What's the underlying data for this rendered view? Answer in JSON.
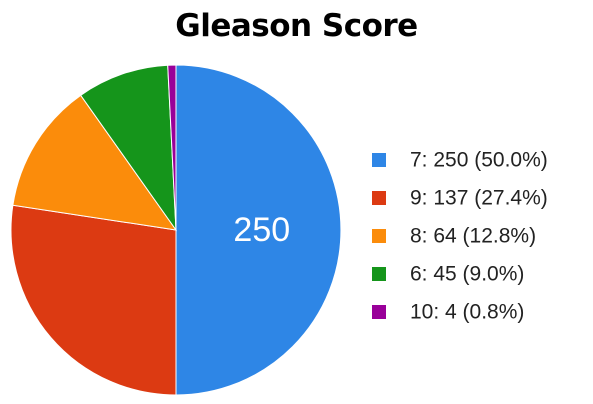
{
  "chart_data": {
    "type": "pie",
    "title": "Gleason Score",
    "slices": [
      {
        "label": "7",
        "value": 250,
        "percent": "50.0%",
        "color": "#2e86e6"
      },
      {
        "label": "9",
        "value": 137,
        "percent": "27.4%",
        "color": "#dc3a12"
      },
      {
        "label": "8",
        "value": 64,
        "percent": "12.8%",
        "color": "#fb8c0b"
      },
      {
        "label": "6",
        "value": 45,
        "percent": "9.0%",
        "color": "#15951b"
      },
      {
        "label": "10",
        "value": 4,
        "percent": "0.8%",
        "color": "#990099"
      }
    ],
    "legend": {
      "position": "right",
      "entries": [
        "7: 250 (50.0%)",
        "9: 137 (27.4%)",
        "8: 64 (12.8%)",
        "6: 45 (9.0%)",
        "10: 4 (0.8%)"
      ]
    },
    "slice_labels": [
      "250"
    ]
  }
}
